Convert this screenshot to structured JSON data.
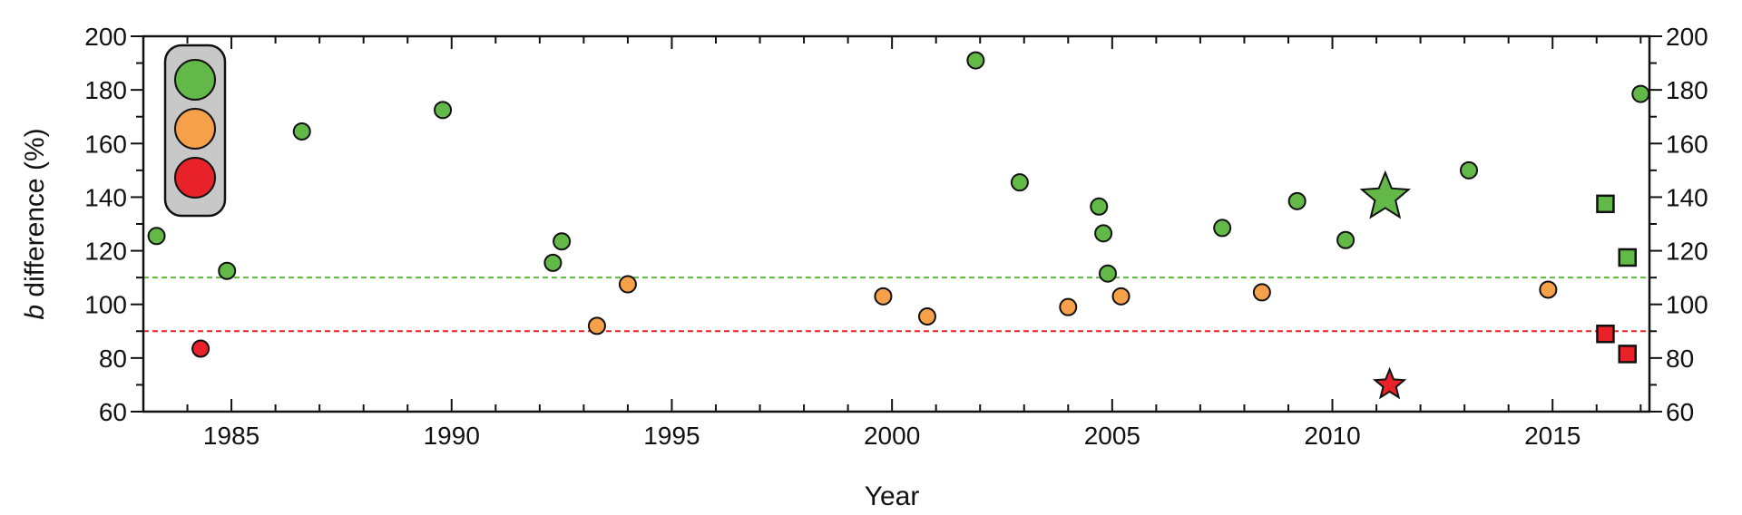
{
  "chart_data": {
    "type": "scatter",
    "xlabel": "Year",
    "ylabel_italic": "b",
    "ylabel_rest": " difference (%)",
    "xlim": [
      1983,
      2017.2
    ],
    "ylim": [
      60,
      200
    ],
    "x_ticks": [
      "1985",
      "1990",
      "1995",
      "2000",
      "2005",
      "2010",
      "2015"
    ],
    "y_ticks": [
      "60",
      "80",
      "100",
      "120",
      "140",
      "160",
      "180",
      "200"
    ],
    "reference_lines": [
      {
        "y": 110,
        "color": "#5dbb3c",
        "style": "dashed"
      },
      {
        "y": 90,
        "color": "#e8262a",
        "style": "dashed"
      }
    ],
    "traffic_light": [
      "#62b947",
      "#f7a04a",
      "#e82228"
    ],
    "colors": {
      "green": "#62b947",
      "orange": "#f7a04a",
      "red": "#e82228"
    },
    "points": [
      {
        "x": 1983.3,
        "y": 125.5,
        "color": "green",
        "marker": "circle"
      },
      {
        "x": 1984.3,
        "y": 83.5,
        "color": "red",
        "marker": "circle"
      },
      {
        "x": 1984.9,
        "y": 112.5,
        "color": "green",
        "marker": "circle"
      },
      {
        "x": 1986.6,
        "y": 164.5,
        "color": "green",
        "marker": "circle"
      },
      {
        "x": 1989.8,
        "y": 172.5,
        "color": "green",
        "marker": "circle"
      },
      {
        "x": 1992.3,
        "y": 115.5,
        "color": "green",
        "marker": "circle"
      },
      {
        "x": 1992.5,
        "y": 123.5,
        "color": "green",
        "marker": "circle"
      },
      {
        "x": 1993.3,
        "y": 92,
        "color": "orange",
        "marker": "circle"
      },
      {
        "x": 1994.0,
        "y": 107.5,
        "color": "orange",
        "marker": "circle"
      },
      {
        "x": 1999.8,
        "y": 103,
        "color": "orange",
        "marker": "circle"
      },
      {
        "x": 2000.8,
        "y": 95.5,
        "color": "orange",
        "marker": "circle"
      },
      {
        "x": 2001.9,
        "y": 191,
        "color": "green",
        "marker": "circle"
      },
      {
        "x": 2002.9,
        "y": 145.5,
        "color": "green",
        "marker": "circle"
      },
      {
        "x": 2004.0,
        "y": 99,
        "color": "orange",
        "marker": "circle"
      },
      {
        "x": 2004.7,
        "y": 136.5,
        "color": "green",
        "marker": "circle"
      },
      {
        "x": 2004.8,
        "y": 126.5,
        "color": "green",
        "marker": "circle"
      },
      {
        "x": 2004.9,
        "y": 111.5,
        "color": "green",
        "marker": "circle"
      },
      {
        "x": 2005.2,
        "y": 103,
        "color": "orange",
        "marker": "circle"
      },
      {
        "x": 2007.5,
        "y": 128.5,
        "color": "green",
        "marker": "circle"
      },
      {
        "x": 2008.4,
        "y": 104.5,
        "color": "orange",
        "marker": "circle"
      },
      {
        "x": 2009.2,
        "y": 138.5,
        "color": "green",
        "marker": "circle"
      },
      {
        "x": 2010.3,
        "y": 124,
        "color": "green",
        "marker": "circle"
      },
      {
        "x": 2011.2,
        "y": 140,
        "color": "green",
        "marker": "star-large"
      },
      {
        "x": 2011.3,
        "y": 70,
        "color": "red",
        "marker": "star"
      },
      {
        "x": 2013.1,
        "y": 150,
        "color": "green",
        "marker": "circle"
      },
      {
        "x": 2014.9,
        "y": 105.5,
        "color": "orange",
        "marker": "circle"
      },
      {
        "x": 2016.2,
        "y": 137.5,
        "color": "green",
        "marker": "square"
      },
      {
        "x": 2016.2,
        "y": 89,
        "color": "red",
        "marker": "square"
      },
      {
        "x": 2016.7,
        "y": 117.5,
        "color": "green",
        "marker": "square"
      },
      {
        "x": 2016.7,
        "y": 81.5,
        "color": "red",
        "marker": "square"
      },
      {
        "x": 2017.0,
        "y": 178.5,
        "color": "green",
        "marker": "circle"
      }
    ]
  }
}
